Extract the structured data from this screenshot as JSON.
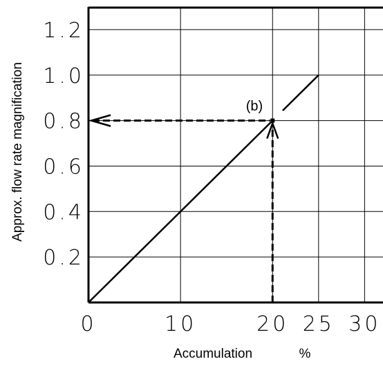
{
  "chart_data": {
    "type": "line",
    "xlabel": "Accumulation",
    "xunit": "%",
    "ylabel": "Approx. flow rate magnification",
    "xlim": [
      0,
      32
    ],
    "ylim": [
      0,
      1.3
    ],
    "x_ticks": [
      0,
      10,
      20,
      25,
      30
    ],
    "x_tick_labels": [
      "0",
      "10",
      "20",
      "25",
      "30"
    ],
    "y_ticks": [
      0.2,
      0.4,
      0.6,
      0.8,
      1.0,
      1.2
    ],
    "y_tick_labels": [
      "0.2",
      "0.4",
      "0.6",
      "0.8",
      "1.0",
      "1.2"
    ],
    "grid": true,
    "series": [
      {
        "x": [
          0,
          25
        ],
        "y": [
          0,
          1.0
        ]
      }
    ],
    "annotation": {
      "label": "(b)",
      "point": [
        20,
        0.8
      ]
    }
  }
}
